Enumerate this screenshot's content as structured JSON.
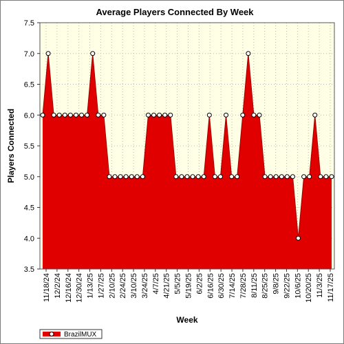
{
  "chart_data": {
    "type": "area",
    "title": "Average Players Connected By Week",
    "xlabel": "Week",
    "ylabel": "Players Connected",
    "ylim": [
      3.5,
      7.5
    ],
    "yticks": [
      "3.5",
      "4.0",
      "4.5",
      "5.0",
      "5.5",
      "6.0",
      "6.5",
      "7.0",
      "7.5"
    ],
    "grid": true,
    "legend_position": "bottom-left",
    "x_labels": [
      "11/18/24",
      "12/2/24",
      "12/16/24",
      "12/30/24",
      "1/13/25",
      "1/27/25",
      "2/10/25",
      "2/24/25",
      "3/10/25",
      "3/24/25",
      "4/7/25",
      "4/21/25",
      "5/5/25",
      "5/19/25",
      "6/2/25",
      "6/16/25",
      "6/30/25",
      "7/14/25",
      "7/28/25",
      "8/11/25",
      "8/25/25",
      "9/8/25",
      "9/22/25",
      "10/6/25",
      "10/20/25",
      "11/3/25",
      "11/17/25"
    ],
    "series": [
      {
        "name": "BrazilMUX",
        "color": "#e00000",
        "values": [
          6.0,
          7.0,
          6.0,
          6.0,
          6.0,
          6.0,
          6.0,
          6.0,
          6.0,
          7.0,
          6.0,
          6.0,
          5.0,
          5.0,
          5.0,
          5.0,
          5.0,
          5.0,
          5.0,
          6.0,
          6.0,
          6.0,
          6.0,
          6.0,
          5.0,
          5.0,
          5.0,
          5.0,
          5.0,
          5.0,
          6.0,
          5.0,
          5.0,
          6.0,
          5.0,
          5.0,
          6.0,
          7.0,
          6.0,
          6.0,
          5.0,
          5.0,
          5.0,
          5.0,
          5.0,
          5.0,
          4.0,
          5.0,
          5.0,
          6.0,
          5.0,
          5.0,
          5.0
        ]
      }
    ]
  }
}
